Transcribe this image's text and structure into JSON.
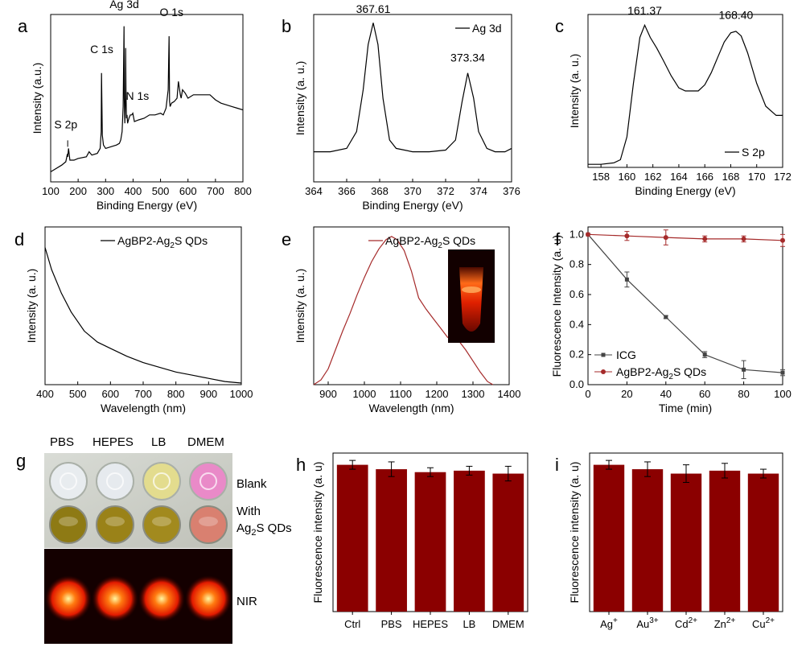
{
  "panels": [
    {
      "id": "a",
      "letter": "a",
      "type": "line",
      "xlabel": "Binding Energy (eV)",
      "ylabel": "Intensity (a.u.)",
      "xlim": [
        100,
        800
      ],
      "xticks": [
        100,
        200,
        300,
        400,
        500,
        600,
        700,
        800
      ],
      "ylim": [
        0,
        1
      ],
      "series": [
        {
          "x": [
            100,
            120,
            140,
            155,
            160,
            162,
            165,
            170,
            185,
            200,
            230,
            240,
            250,
            270,
            280,
            284,
            285,
            288,
            292,
            300,
            320,
            340,
            350,
            355,
            360,
            364,
            367,
            368,
            370,
            372,
            373,
            374,
            376,
            378,
            380,
            385,
            390,
            395,
            399,
            405,
            420,
            440,
            460,
            480,
            500,
            510,
            520,
            528,
            531,
            533,
            535,
            540,
            550,
            560,
            565,
            572,
            575,
            580,
            590,
            600,
            620,
            640,
            660,
            680,
            700,
            720,
            740,
            760,
            780,
            800
          ],
          "y": [
            0.06,
            0.08,
            0.1,
            0.12,
            0.16,
            0.15,
            0.2,
            0.13,
            0.13,
            0.14,
            0.15,
            0.18,
            0.16,
            0.17,
            0.2,
            0.3,
            0.65,
            0.28,
            0.22,
            0.2,
            0.21,
            0.22,
            0.23,
            0.25,
            0.3,
            0.45,
            0.93,
            0.5,
            0.35,
            0.5,
            0.8,
            0.55,
            0.38,
            0.4,
            0.35,
            0.38,
            0.4,
            0.4,
            0.41,
            0.36,
            0.37,
            0.38,
            0.4,
            0.4,
            0.41,
            0.4,
            0.44,
            0.55,
            0.87,
            0.48,
            0.45,
            0.47,
            0.48,
            0.5,
            0.6,
            0.52,
            0.5,
            0.55,
            0.53,
            0.5,
            0.52,
            0.52,
            0.52,
            0.52,
            0.49,
            0.47,
            0.46,
            0.45,
            0.44,
            0.43
          ]
        }
      ],
      "peak_labels": [
        {
          "text": "S 2p",
          "x": 155,
          "y": 0.3
        },
        {
          "text": "C 1s",
          "x": 286,
          "y": 0.75
        },
        {
          "text": "Ag 3d",
          "x": 368,
          "y": 1.02
        },
        {
          "text": "N 1s",
          "x": 416,
          "y": 0.47
        },
        {
          "text": "O 1s",
          "x": 540,
          "y": 0.97
        }
      ],
      "legend": null
    },
    {
      "id": "b",
      "letter": "b",
      "type": "line",
      "xlabel": "Binding Energy (eV)",
      "ylabel": "Intensity (a. u.)",
      "xlim": [
        364,
        376
      ],
      "xticks": [
        364,
        366,
        368,
        370,
        372,
        374,
        376
      ],
      "ylim": [
        0,
        1
      ],
      "series": [
        {
          "x": [
            364.0,
            365.0,
            366.0,
            366.6,
            367.0,
            367.3,
            367.61,
            367.9,
            368.2,
            368.6,
            369.0,
            370.0,
            371.0,
            372.0,
            372.6,
            373.0,
            373.34,
            373.7,
            374.0,
            374.5,
            375.0,
            375.6,
            376.0
          ],
          "y": [
            0.18,
            0.18,
            0.2,
            0.3,
            0.55,
            0.82,
            0.95,
            0.82,
            0.5,
            0.25,
            0.2,
            0.18,
            0.18,
            0.19,
            0.25,
            0.48,
            0.65,
            0.5,
            0.3,
            0.2,
            0.18,
            0.18,
            0.2
          ]
        }
      ],
      "peak_labels": [
        {
          "text": "367.61",
          "x": 367.61,
          "y": 0.99
        },
        {
          "text": "373.34",
          "x": 373.34,
          "y": 0.7
        }
      ],
      "legend": {
        "text": "Ag 3d",
        "position": "top-right"
      }
    },
    {
      "id": "c",
      "letter": "c",
      "type": "line",
      "xlabel": "Binding Energy (eV)",
      "ylabel": "Intensity (a. u.)",
      "xlim": [
        157,
        172
      ],
      "xticks": [
        158,
        160,
        162,
        164,
        166,
        168,
        170,
        172
      ],
      "ylim": [
        0,
        1
      ],
      "series": [
        {
          "x": [
            157.0,
            158.0,
            159.0,
            159.5,
            160.0,
            160.5,
            161.0,
            161.37,
            161.8,
            162.3,
            162.8,
            163.4,
            164.0,
            164.5,
            165.0,
            165.5,
            166.0,
            166.5,
            167.0,
            167.5,
            168.0,
            168.4,
            168.8,
            169.3,
            170.0,
            170.7,
            171.5,
            172.0
          ],
          "y": [
            0.02,
            0.02,
            0.03,
            0.05,
            0.2,
            0.55,
            0.85,
            0.93,
            0.85,
            0.78,
            0.7,
            0.6,
            0.52,
            0.5,
            0.5,
            0.5,
            0.54,
            0.62,
            0.72,
            0.82,
            0.88,
            0.89,
            0.86,
            0.75,
            0.55,
            0.4,
            0.34,
            0.34
          ]
        }
      ],
      "peak_labels": [
        {
          "text": "161.37",
          "x": 161.37,
          "y": 0.98
        },
        {
          "text": "168.40",
          "x": 168.4,
          "y": 0.95
        }
      ],
      "legend": {
        "text": "S 2p",
        "position": "bottom-right"
      }
    },
    {
      "id": "d",
      "letter": "d",
      "type": "line",
      "xlabel": "Wavelength (nm)",
      "ylabel": "Intensity (a. u.)",
      "xlim": [
        400,
        1000
      ],
      "xticks": [
        400,
        500,
        600,
        700,
        800,
        900,
        1000
      ],
      "ylim": [
        0,
        1
      ],
      "series": [
        {
          "x": [
            400,
            420,
            450,
            480,
            520,
            560,
            600,
            650,
            700,
            750,
            800,
            850,
            900,
            950,
            1000
          ],
          "y": [
            0.87,
            0.73,
            0.58,
            0.46,
            0.34,
            0.27,
            0.23,
            0.18,
            0.14,
            0.11,
            0.08,
            0.06,
            0.04,
            0.02,
            0.01
          ]
        }
      ],
      "peak_labels": [],
      "legend": {
        "text": "AgBP2-Ag",
        "sub": "2",
        "suffix": "S QDs",
        "position": "top-right"
      }
    },
    {
      "id": "e",
      "letter": "e",
      "type": "line",
      "xlabel": "Wavelength (nm)",
      "ylabel": "Intensity (a. u.)",
      "xlim": [
        860,
        1400
      ],
      "xticks": [
        900,
        1000,
        1100,
        1200,
        1300,
        1400
      ],
      "ylim": [
        0,
        1
      ],
      "series": [
        {
          "x": [
            860,
            880,
            900,
            920,
            940,
            960,
            980,
            1000,
            1020,
            1040,
            1060,
            1075,
            1090,
            1110,
            1130,
            1150,
            1170,
            1190,
            1210,
            1230,
            1250,
            1260,
            1280,
            1300,
            1320,
            1340,
            1355
          ],
          "y": [
            0.0,
            0.03,
            0.1,
            0.22,
            0.34,
            0.45,
            0.57,
            0.68,
            0.78,
            0.86,
            0.92,
            0.94,
            0.92,
            0.85,
            0.72,
            0.55,
            0.48,
            0.42,
            0.36,
            0.3,
            0.29,
            0.28,
            0.22,
            0.15,
            0.08,
            0.02,
            0.0
          ]
        }
      ],
      "peak_labels": [],
      "legend": {
        "text": "AgBP2-Ag",
        "sub": "2",
        "suffix": "S QDs",
        "position": "top-right"
      }
    },
    {
      "id": "f",
      "letter": "f",
      "type": "line",
      "xlabel": "Time (min)",
      "ylabel": "Fluorescence Intensity (a. u)",
      "xlim": [
        0,
        100
      ],
      "xticks": [
        0,
        20,
        40,
        60,
        80,
        100
      ],
      "ylim": [
        0,
        1.05
      ],
      "yticks": [
        0.0,
        0.2,
        0.4,
        0.6,
        0.8,
        1.0
      ],
      "series": [
        {
          "name": "ICG",
          "x": [
            0,
            20,
            40,
            60,
            80,
            100
          ],
          "y": [
            1.0,
            0.7,
            0.45,
            0.2,
            0.1,
            0.08
          ],
          "err": [
            0.0,
            0.05,
            0.01,
            0.02,
            0.06,
            0.02
          ],
          "color": "#444444",
          "marker": "square"
        },
        {
          "name": "AgBP2-Ag2S QDs",
          "display": {
            "text": "AgBP2-Ag",
            "sub": "2",
            "suffix": "S QDs"
          },
          "x": [
            0,
            20,
            40,
            60,
            80,
            100
          ],
          "y": [
            1.0,
            0.99,
            0.98,
            0.97,
            0.97,
            0.96
          ],
          "err": [
            0.0,
            0.03,
            0.05,
            0.02,
            0.02,
            0.04
          ],
          "color": "#a52a2a",
          "marker": "circle"
        }
      ],
      "peak_labels": [],
      "legend": {
        "position": "bottom-left"
      }
    },
    {
      "id": "h",
      "letter": "h",
      "type": "bar",
      "ylabel": "Fluorescence intensity (a. u)",
      "ylim": [
        0,
        1.08
      ],
      "categories": [
        {
          "text": "Ctrl"
        },
        {
          "text": "PBS"
        },
        {
          "text": "HEPES"
        },
        {
          "text": "LB"
        },
        {
          "text": "DMEM"
        }
      ],
      "values": [
        1.0,
        0.97,
        0.95,
        0.96,
        0.94
      ],
      "err": [
        0.03,
        0.05,
        0.03,
        0.03,
        0.05
      ],
      "color": "#8b0000"
    },
    {
      "id": "i",
      "letter": "i",
      "type": "bar",
      "ylabel": "Fluorescence intensity (a. u)",
      "ylim": [
        0,
        1.08
      ],
      "categories": [
        {
          "text": "Ag",
          "sup": "+"
        },
        {
          "text": "Au",
          "sup": "3+"
        },
        {
          "text": "Cd",
          "sup": "2+"
        },
        {
          "text": "Zn",
          "sup": "2+"
        },
        {
          "text": "Cu",
          "sup": "2+"
        }
      ],
      "values": [
        1.0,
        0.97,
        0.94,
        0.96,
        0.94
      ],
      "err": [
        0.03,
        0.05,
        0.06,
        0.05,
        0.03
      ],
      "color": "#8b0000"
    }
  ],
  "photo_g": {
    "letter": "g",
    "columns": [
      "PBS",
      "HEPES",
      "LB",
      "DMEM"
    ],
    "row_labels": {
      "blank": "Blank",
      "with": "With",
      "with2_pre": "Ag",
      "with2_sub": "2",
      "with2_post": "S QDs",
      "nir": "NIR"
    },
    "blank_colors": [
      "#e8ecef",
      "#e6eaee",
      "#e3dc8e",
      "#e98ac8"
    ],
    "with_colors": [
      "#8e7a14",
      "#9a8218",
      "#a28a1e",
      "#d98070"
    ]
  }
}
